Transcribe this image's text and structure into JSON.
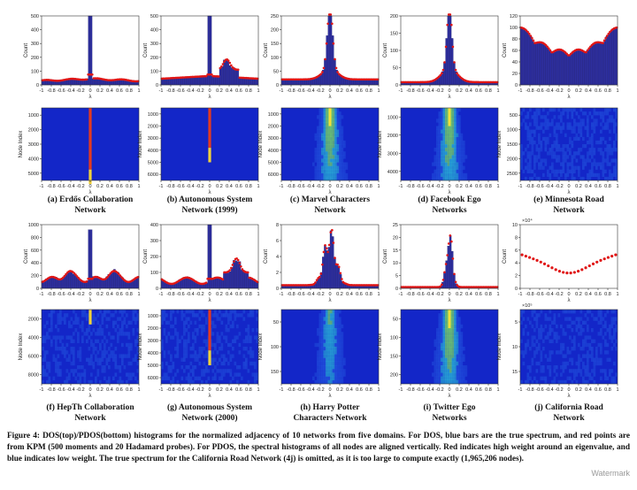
{
  "figure": {
    "caption": "Figure 4: DOS(top)/PDOS(bottom) histograms for the normalized adjacency of 10 networks from five domains. For DOS, blue bars are the true spectrum, and red points are from KPM (500 moments and 20 Hadamard probes). For PDOS, the spectral histograms of all nodes are aligned vertically. Red indicates high weight around an eigenvalue, and blue indicates low weight. The true spectrum for the California Road Network (4j) is omitted, as it is too large to compute exactly (1,965,206 nodes).",
    "watermark": "Watermark",
    "x_label": "λ",
    "dos_y_label": "Count",
    "pdos_y_label": "Node Index",
    "x_ticks": [
      "-1",
      "-0.8",
      "-0.6",
      "-0.4",
      "-0.2",
      "0",
      "0.2",
      "0.4",
      "0.6",
      "0.8",
      "1"
    ]
  },
  "networks": [
    {
      "id": "a",
      "caption_line1": "(a) Erdős Collaboration",
      "caption_line2": "Network",
      "dos_ymax": 500,
      "dos_yticks": [
        "0",
        "100",
        "200",
        "300",
        "400",
        "500"
      ],
      "pdos_yticks": [
        "1000",
        "2000",
        "3000",
        "4000",
        "5000"
      ],
      "pdos_exponent": ""
    },
    {
      "id": "b",
      "caption_line1": "(b) Autonomous System",
      "caption_line2": "Network (1999)",
      "dos_ymax": 500,
      "dos_yticks": [
        "0",
        "100",
        "200",
        "300",
        "400",
        "500"
      ],
      "pdos_yticks": [
        "1000",
        "2000",
        "3000",
        "4000",
        "5000",
        "6000"
      ],
      "pdos_exponent": ""
    },
    {
      "id": "c",
      "caption_line1": "(c) Marvel Characters",
      "caption_line2": "Network",
      "dos_ymax": 250,
      "dos_yticks": [
        "0",
        "50",
        "100",
        "150",
        "200",
        "250"
      ],
      "pdos_yticks": [
        "1000",
        "2000",
        "3000",
        "4000",
        "5000",
        "6000"
      ],
      "pdos_exponent": ""
    },
    {
      "id": "d",
      "caption_line1": "(d) Facebook Ego",
      "caption_line2": "Networks",
      "dos_ymax": 200,
      "dos_yticks": [
        "0",
        "50",
        "100",
        "150",
        "200"
      ],
      "pdos_yticks": [
        "1000",
        "2000",
        "3000",
        "4000"
      ],
      "pdos_exponent": ""
    },
    {
      "id": "e",
      "caption_line1": "(e) Minnesota Road",
      "caption_line2": "Network",
      "dos_ymax": 120,
      "dos_yticks": [
        "0",
        "20",
        "40",
        "60",
        "80",
        "100",
        "120"
      ],
      "pdos_yticks": [
        "500",
        "1000",
        "1500",
        "2000",
        "2500"
      ],
      "pdos_exponent": ""
    },
    {
      "id": "f",
      "caption_line1": "(f) HepTh Collaboration",
      "caption_line2": "Network",
      "dos_ymax": 1000,
      "dos_yticks": [
        "0",
        "200",
        "400",
        "600",
        "800",
        "1000"
      ],
      "pdos_yticks": [
        "2000",
        "4000",
        "6000",
        "8000"
      ],
      "pdos_exponent": ""
    },
    {
      "id": "g",
      "caption_line1": "(g) Autonomous System",
      "caption_line2": "Network (2000)",
      "dos_ymax": 400,
      "dos_yticks": [
        "0",
        "100",
        "200",
        "300",
        "400"
      ],
      "pdos_yticks": [
        "1000",
        "2000",
        "3000",
        "4000",
        "5000",
        "6000"
      ],
      "pdos_exponent": ""
    },
    {
      "id": "h",
      "caption_line1": "(h) Harry Potter",
      "caption_line2": "Characters Network",
      "dos_ymax": 8,
      "dos_yticks": [
        "0",
        "2",
        "4",
        "6",
        "8"
      ],
      "pdos_yticks": [
        "50",
        "100",
        "150"
      ],
      "pdos_exponent": ""
    },
    {
      "id": "i",
      "caption_line1": "(i) Twitter Ego",
      "caption_line2": "Networks",
      "dos_ymax": 25,
      "dos_yticks": [
        "0",
        "5",
        "10",
        "15",
        "20",
        "25"
      ],
      "pdos_yticks": [
        "50",
        "100",
        "150",
        "200"
      ],
      "pdos_exponent": ""
    },
    {
      "id": "j",
      "caption_line1": "(j) California Road",
      "caption_line2": "Network",
      "dos_ymax": 10,
      "dos_yticks": [
        "0",
        "2",
        "4",
        "6",
        "8",
        "10"
      ],
      "dos_exponent": "×10⁴",
      "pdos_yticks": [
        "5",
        "10",
        "15"
      ],
      "pdos_exponent": "×10⁵"
    }
  ]
}
